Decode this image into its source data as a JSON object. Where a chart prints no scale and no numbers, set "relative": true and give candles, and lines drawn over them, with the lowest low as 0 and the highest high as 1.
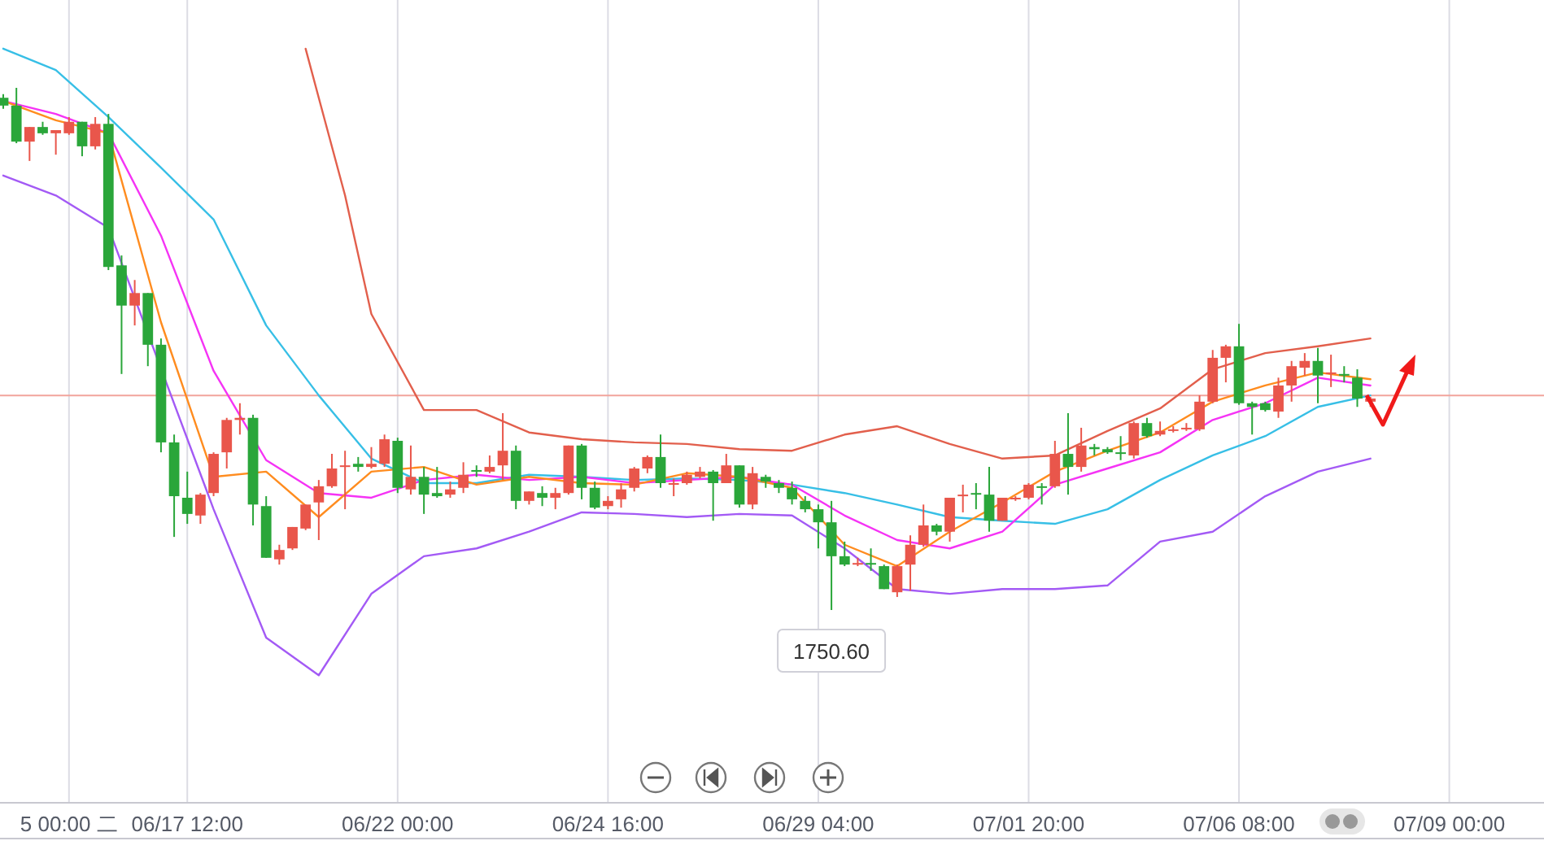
{
  "chart_data": {
    "type": "candlestick",
    "relative": true,
    "tick_labels": "x",
    "grid": "x",
    "categories": [
      null,
      null,
      null,
      null,
      null,
      "5 00:00 二",
      null,
      null,
      null,
      null,
      null,
      null,
      null,
      null,
      "06/17 12:00",
      null,
      null,
      null,
      null,
      null,
      null,
      null,
      null,
      null,
      null,
      null,
      null,
      null,
      null,
      null,
      "06/22 00:00",
      null,
      null,
      null,
      null,
      null,
      null,
      null,
      null,
      null,
      null,
      null,
      null,
      null,
      null,
      null,
      "06/24 16:00",
      null,
      null,
      null,
      null,
      null,
      null,
      null,
      null,
      null,
      null,
      null,
      null,
      null,
      null,
      null,
      "06/29 04:00",
      null,
      null,
      null,
      null,
      null,
      null,
      null,
      null,
      null,
      null,
      null,
      null,
      null,
      null,
      null,
      "07/01 20:00",
      null,
      null,
      null,
      null,
      null,
      null,
      null,
      null,
      null,
      null,
      null,
      null,
      null,
      null,
      null,
      "07/06 08:00",
      null,
      null,
      null,
      null,
      null,
      null,
      null,
      null,
      null,
      null,
      null,
      null,
      null,
      null,
      null,
      "07/09 00:00"
    ],
    "ohlc": [
      [
        0.981,
        0.988,
        0.96,
        0.966
      ],
      [
        0.966,
        1,
        0.894,
        0.897
      ],
      [
        0.897,
        0.925,
        0.86,
        0.925
      ],
      [
        0.925,
        0.935,
        0.91,
        0.913
      ],
      [
        0.913,
        0.919,
        0.872,
        0.919
      ],
      [
        0.913,
        0.944,
        0.91,
        0.935
      ],
      [
        0.935,
        0.935,
        0.869,
        0.888
      ],
      [
        0.888,
        0.944,
        0.882,
        0.931
      ],
      [
        0.931,
        0.95,
        0.651,
        0.657
      ],
      [
        0.66,
        0.679,
        0.452,
        0.583
      ],
      [
        0.583,
        0.632,
        0.545,
        0.607
      ],
      [
        0.607,
        0.607,
        0.467,
        0.508
      ],
      [
        0.508,
        0.52,
        0.302,
        0.321
      ],
      [
        0.321,
        0.336,
        0.14,
        0.218
      ],
      [
        0.215,
        0.265,
        0.165,
        0.184
      ],
      [
        0.181,
        0.224,
        0.165,
        0.221
      ],
      [
        0.224,
        0.302,
        0.218,
        0.299
      ],
      [
        0.302,
        0.368,
        0.271,
        0.364
      ],
      [
        0.364,
        0.396,
        0.336,
        0.368
      ],
      [
        0.368,
        0.374,
        0.162,
        0.202
      ],
      [
        0.199,
        0.218,
        0.1,
        0.1
      ],
      [
        0.097,
        0.125,
        0.087,
        0.115
      ],
      [
        0.118,
        0.159,
        0.115,
        0.159
      ],
      [
        0.156,
        0.202,
        0.153,
        0.202
      ],
      [
        0.206,
        0.249,
        0.134,
        0.237
      ],
      [
        0.237,
        0.299,
        0.234,
        0.271
      ],
      [
        0.274,
        0.305,
        0.193,
        0.277
      ],
      [
        0.28,
        0.293,
        0.265,
        0.274
      ],
      [
        0.274,
        0.312,
        0.271,
        0.28
      ],
      [
        0.28,
        0.336,
        0.274,
        0.327
      ],
      [
        0.324,
        0.33,
        0.224,
        0.234
      ],
      [
        0.231,
        0.315,
        0.221,
        0.255
      ],
      [
        0.255,
        0.274,
        0.184,
        0.221
      ],
      [
        0.224,
        0.274,
        0.215,
        0.218
      ],
      [
        0.221,
        0.246,
        0.215,
        0.231
      ],
      [
        0.234,
        0.283,
        0.224,
        0.259
      ],
      [
        0.268,
        0.277,
        0.255,
        0.265
      ],
      [
        0.265,
        0.296,
        0.262,
        0.274
      ],
      [
        0.277,
        0.377,
        0.249,
        0.305
      ],
      [
        0.305,
        0.315,
        0.193,
        0.209
      ],
      [
        0.209,
        0.227,
        0.202,
        0.227
      ],
      [
        0.224,
        0.237,
        0.199,
        0.215
      ],
      [
        0.215,
        0.234,
        0.193,
        0.224
      ],
      [
        0.224,
        0.315,
        0.221,
        0.315
      ],
      [
        0.315,
        0.318,
        0.212,
        0.234
      ],
      [
        0.234,
        0.246,
        0.193,
        0.196
      ],
      [
        0.199,
        0.218,
        0.193,
        0.209
      ],
      [
        0.212,
        0.243,
        0.196,
        0.231
      ],
      [
        0.234,
        0.274,
        0.227,
        0.271
      ],
      [
        0.271,
        0.296,
        0.262,
        0.293
      ],
      [
        0.293,
        0.336,
        0.234,
        0.243
      ],
      [
        0.24,
        0.252,
        0.218,
        0.243
      ],
      [
        0.243,
        0.265,
        0.24,
        0.259
      ],
      [
        0.255,
        0.274,
        0.252,
        0.265
      ],
      [
        0.265,
        0.268,
        0.171,
        0.243
      ],
      [
        0.243,
        0.299,
        0.243,
        0.277
      ],
      [
        0.277,
        0.277,
        0.196,
        0.202
      ],
      [
        0.202,
        0.274,
        0.193,
        0.262
      ],
      [
        0.255,
        0.259,
        0.234,
        0.246
      ],
      [
        0.243,
        0.249,
        0.224,
        0.234
      ],
      [
        0.234,
        0.246,
        0.202,
        0.212
      ],
      [
        0.209,
        0.218,
        0.187,
        0.193
      ],
      [
        0.193,
        0.202,
        0.118,
        0.168
      ],
      [
        0.168,
        0.209,
        0,
        0.103
      ],
      [
        0.103,
        0.131,
        0.084,
        0.087
      ],
      [
        0.087,
        0.1,
        0.084,
        0.09
      ],
      [
        0.09,
        0.118,
        0.075,
        0.087
      ],
      [
        0.084,
        0.087,
        0.04,
        0.04
      ],
      [
        0.034,
        0.087,
        0.025,
        0.084
      ],
      [
        0.087,
        0.143,
        0.037,
        0.125
      ],
      [
        0.125,
        0.202,
        0.121,
        0.162
      ],
      [
        0.162,
        0.165,
        0.143,
        0.15
      ],
      [
        0.15,
        0.215,
        0.131,
        0.215
      ],
      [
        0.218,
        0.24,
        0.187,
        0.221
      ],
      [
        0.224,
        0.243,
        0.193,
        0.221
      ],
      [
        0.221,
        0.274,
        0.15,
        0.171
      ],
      [
        0.171,
        0.215,
        0.171,
        0.215
      ],
      [
        0.212,
        0.218,
        0.209,
        0.215
      ],
      [
        0.215,
        0.243,
        0.212,
        0.24
      ],
      [
        0.237,
        0.243,
        0.202,
        0.234
      ],
      [
        0.237,
        0.324,
        0.234,
        0.299
      ],
      [
        0.299,
        0.377,
        0.221,
        0.274
      ],
      [
        0.274,
        0.349,
        0.265,
        0.315
      ],
      [
        0.312,
        0.318,
        0.296,
        0.308
      ],
      [
        0.308,
        0.312,
        0.299,
        0.302
      ],
      [
        0.302,
        0.333,
        0.287,
        0.299
      ],
      [
        0.296,
        0.361,
        0.29,
        0.358
      ],
      [
        0.358,
        0.368,
        0.33,
        0.333
      ],
      [
        0.336,
        0.361,
        0.333,
        0.343
      ],
      [
        0.343,
        0.352,
        0.34,
        0.346
      ],
      [
        0.346,
        0.358,
        0.343,
        0.349
      ],
      [
        0.346,
        0.411,
        0.343,
        0.399
      ],
      [
        0.399,
        0.498,
        0.396,
        0.483
      ],
      [
        0.483,
        0.508,
        0.436,
        0.505
      ],
      [
        0.505,
        0.548,
        0.393,
        0.396
      ],
      [
        0.396,
        0.399,
        0.336,
        0.389
      ],
      [
        0.396,
        0.399,
        0.38,
        0.383
      ],
      [
        0.38,
        0.445,
        0.368,
        0.43
      ],
      [
        0.43,
        0.477,
        0.399,
        0.467
      ],
      [
        0.464,
        0.492,
        0.449,
        0.477
      ],
      [
        0.477,
        0.502,
        0.396,
        0.449
      ],
      [
        0.452,
        0.489,
        0.427,
        0.455
      ],
      [
        0.452,
        0.467,
        0.436,
        0.449
      ],
      [
        0.445,
        0.461,
        0.389,
        0.405
      ],
      [
        0.399,
        0.408,
        0.389,
        0.405
      ],
      null,
      null,
      null,
      null,
      null,
      null
    ],
    "colors": [
      "#2aa63a",
      "#2aa63a",
      "#e9564b",
      "#2aa63a",
      "#e9564b",
      "#e9564b",
      "#2aa63a",
      "#e9564b",
      "#2aa63a",
      "#2aa63a",
      "#e9564b",
      "#2aa63a",
      "#2aa63a",
      "#2aa63a",
      "#2aa63a",
      "#e9564b",
      "#e9564b",
      "#e9564b",
      "#e9564b",
      "#2aa63a",
      "#2aa63a",
      "#e9564b",
      "#e9564b",
      "#e9564b",
      "#e9564b",
      "#e9564b",
      "#e9564b",
      "#2aa63a",
      "#e9564b",
      "#e9564b",
      "#2aa63a",
      "#e9564b",
      "#2aa63a",
      "#2aa63a",
      "#e9564b",
      "#e9564b",
      "#2aa63a",
      "#e9564b",
      "#e9564b",
      "#2aa63a",
      "#e9564b",
      "#2aa63a",
      "#e9564b",
      "#e9564b",
      "#2aa63a",
      "#2aa63a",
      "#e9564b",
      "#e9564b",
      "#e9564b",
      "#e9564b",
      "#2aa63a",
      "#e9564b",
      "#e9564b",
      "#e9564b",
      "#2aa63a",
      "#e9564b",
      "#2aa63a",
      "#e9564b",
      "#2aa63a",
      "#2aa63a",
      "#2aa63a",
      "#2aa63a",
      "#2aa63a",
      "#2aa63a",
      "#2aa63a",
      "#e9564b",
      "#2aa63a",
      "#2aa63a",
      "#e9564b",
      "#e9564b",
      "#e9564b",
      "#2aa63a",
      "#e9564b",
      "#e9564b",
      "#2aa63a",
      "#2aa63a",
      "#e9564b",
      "#e9564b",
      "#e9564b",
      "#2aa63a",
      "#e9564b",
      "#2aa63a",
      "#e9564b",
      "#2aa63a",
      "#2aa63a",
      "#2aa63a",
      "#e9564b",
      "#2aa63a",
      "#e9564b",
      "#e9564b",
      "#e9564b",
      "#e9564b",
      "#e9564b",
      "#e9564b",
      "#2aa63a",
      "#2aa63a",
      "#2aa63a",
      "#e9564b",
      "#e9564b",
      "#e9564b",
      "#2aa63a",
      "#e9564b",
      "#2aa63a",
      "#2aa63a",
      "#e9564b",
      null,
      null,
      null,
      null,
      null,
      null
    ],
    "series": [
      {
        "type": "line",
        "color": "#37bfe6",
        "values": [
          1.075,
          null,
          null,
          null,
          1.034,
          null,
          null,
          null,
          0.944,
          null,
          null,
          null,
          0.847,
          null,
          null,
          null,
          0.748,
          null,
          null,
          null,
          0.545,
          null,
          null,
          null,
          0.411,
          null,
          null,
          null,
          0.29,
          null,
          null,
          null,
          0.243,
          null,
          null,
          null,
          0.243,
          null,
          null,
          null,
          0.259,
          null,
          null,
          null,
          0.255,
          null,
          null,
          null,
          0.249,
          null,
          null,
          null,
          0.252,
          null,
          null,
          null,
          0.249,
          null,
          null,
          null,
          0.24,
          null,
          null,
          null,
          0.224,
          null,
          null,
          null,
          0.202,
          null,
          null,
          null,
          0.178,
          null,
          null,
          null,
          0.171,
          null,
          null,
          null,
          0.165,
          null,
          null,
          null,
          0.193,
          null,
          null,
          null,
          0.249,
          null,
          null,
          null,
          0.296,
          null,
          null,
          null,
          0.333,
          null,
          null,
          null,
          0.389,
          null,
          null,
          null,
          0.411,
          null,
          null,
          null,
          null,
          null,
          null
        ]
      },
      {
        "type": "line",
        "color": "#f533f5",
        "values": [
          0.975,
          null,
          null,
          null,
          0.95,
          null,
          null,
          null,
          0.913,
          null,
          null,
          null,
          0.717,
          null,
          null,
          null,
          0.458,
          null,
          null,
          null,
          0.287,
          null,
          null,
          null,
          0.224,
          null,
          null,
          null,
          0.215,
          null,
          null,
          null,
          0.249,
          null,
          null,
          null,
          0.259,
          null,
          null,
          null,
          0.249,
          null,
          null,
          null,
          0.255,
          null,
          null,
          null,
          0.243,
          null,
          null,
          null,
          0.249,
          null,
          null,
          null,
          0.255,
          null,
          null,
          null,
          0.24,
          null,
          null,
          null,
          0.181,
          null,
          null,
          null,
          0.134,
          null,
          null,
          null,
          0.118,
          null,
          null,
          null,
          0.15,
          null,
          null,
          null,
          0.24,
          null,
          null,
          null,
          0.271,
          null,
          null,
          null,
          0.302,
          null,
          null,
          null,
          0.364,
          null,
          null,
          null,
          0.396,
          null,
          null,
          null,
          0.445,
          null,
          null,
          null,
          0.43,
          null,
          null,
          null,
          null,
          null,
          null
        ]
      },
      {
        "type": "line",
        "color": "#ff8c1f",
        "values": [
          0.975,
          null,
          null,
          null,
          0.938,
          null,
          null,
          null,
          0.913,
          null,
          null,
          null,
          0.551,
          null,
          null,
          null,
          0.255,
          null,
          null,
          null,
          0.265,
          null,
          null,
          null,
          0.178,
          null,
          null,
          null,
          0.265,
          null,
          null,
          null,
          0.274,
          null,
          null,
          null,
          0.24,
          null,
          null,
          null,
          0.255,
          null,
          null,
          null,
          0.243,
          null,
          null,
          null,
          0.24,
          null,
          null,
          null,
          0.262,
          null,
          null,
          null,
          0.255,
          null,
          null,
          null,
          0.234,
          null,
          null,
          null,
          0.125,
          null,
          null,
          null,
          0.084,
          null,
          null,
          null,
          0.15,
          null,
          null,
          null,
          0.206,
          null,
          null,
          null,
          0.265,
          null,
          null,
          null,
          0.305,
          null,
          null,
          null,
          0.34,
          null,
          null,
          null,
          0.399,
          null,
          null,
          null,
          0.43,
          null,
          null,
          null,
          0.455,
          null,
          null,
          null,
          0.442,
          null,
          null,
          null,
          null,
          null,
          null
        ]
      },
      {
        "type": "line",
        "color": "#e25f4c",
        "values": [
          null,
          null,
          null,
          null,
          null,
          null,
          null,
          null,
          null,
          null,
          null,
          null,
          null,
          null,
          null,
          null,
          null,
          null,
          null,
          null,
          null,
          null,
          null,
          1.075,
          0.981,
          null,
          0.794,
          null,
          0.567,
          null,
          null,
          null,
          0.383,
          null,
          null,
          null,
          0.383,
          null,
          null,
          null,
          0.34,
          null,
          null,
          null,
          0.327,
          null,
          null,
          null,
          0.321,
          null,
          null,
          null,
          0.318,
          null,
          null,
          null,
          0.308,
          null,
          null,
          null,
          0.305,
          null,
          null,
          null,
          0.336,
          null,
          null,
          null,
          0.352,
          null,
          null,
          null,
          0.318,
          null,
          null,
          null,
          0.29,
          null,
          null,
          null,
          0.296,
          null,
          null,
          null,
          0.343,
          null,
          null,
          null,
          0.386,
          null,
          null,
          null,
          0.461,
          null,
          null,
          null,
          0.492,
          null,
          null,
          null,
          0.505,
          null,
          null,
          null,
          0.52,
          null,
          null,
          null,
          null,
          null,
          null
        ]
      },
      {
        "type": "line",
        "color": "#a35af5",
        "values": [
          0.832,
          null,
          null,
          null,
          0.794,
          null,
          null,
          null,
          0.732,
          null,
          null,
          null,
          null,
          null,
          null,
          null,
          0.193,
          null,
          null,
          null,
          -0.053,
          null,
          null,
          null,
          -0.125,
          null,
          null,
          null,
          0.031,
          null,
          null,
          null,
          0.103,
          null,
          null,
          null,
          0.118,
          null,
          null,
          null,
          0.15,
          null,
          null,
          null,
          0.187,
          null,
          null,
          null,
          0.184,
          null,
          null,
          null,
          0.178,
          null,
          null,
          null,
          0.184,
          null,
          null,
          null,
          0.181,
          null,
          null,
          null,
          0.118,
          null,
          null,
          null,
          0.04,
          null,
          null,
          null,
          0.031,
          null,
          null,
          null,
          0.04,
          null,
          null,
          null,
          0.04,
          null,
          null,
          null,
          0.047,
          null,
          null,
          null,
          0.131,
          null,
          null,
          null,
          0.15,
          null,
          null,
          null,
          0.218,
          null,
          null,
          null,
          0.265,
          null,
          null,
          null,
          0.29,
          null,
          null,
          null,
          null,
          null,
          null
        ]
      }
    ],
    "ref_lines": [
      {
        "axis": "y",
        "value": 0.411,
        "color": "#f2a49c"
      }
    ],
    "annotations": [
      {
        "text": "1750.60",
        "y": 0
      }
    ]
  }
}
